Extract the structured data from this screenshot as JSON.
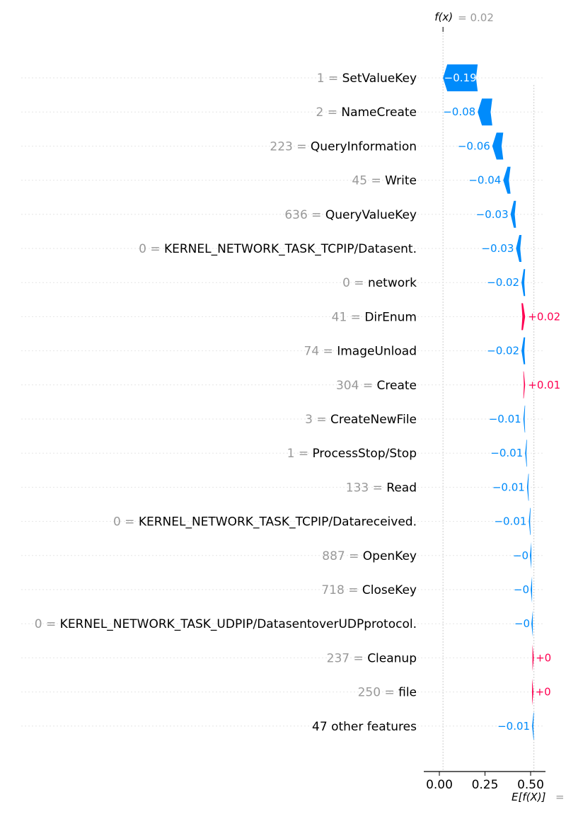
{
  "chart_data": {
    "type": "waterfall",
    "title": "",
    "fx_label": "f(x)",
    "fx_eq": "= 0.02",
    "ex_label": "E[f(X)]",
    "ex_eq": "=",
    "features": [
      {
        "value": "1",
        "name": "SetValueKey",
        "contribution": -0.19,
        "label": "−0.19"
      },
      {
        "value": "2",
        "name": "NameCreate",
        "contribution": -0.08,
        "label": "−0.08"
      },
      {
        "value": "223",
        "name": "QueryInformation",
        "contribution": -0.06,
        "label": "−0.06"
      },
      {
        "value": "45",
        "name": "Write",
        "contribution": -0.04,
        "label": "−0.04"
      },
      {
        "value": "636",
        "name": "QueryValueKey",
        "contribution": -0.03,
        "label": "−0.03"
      },
      {
        "value": "0",
        "name": "KERNEL_NETWORK_TASK_TCPIP/Datasent.",
        "contribution": -0.03,
        "label": "−0.03"
      },
      {
        "value": "0",
        "name": "network",
        "contribution": -0.02,
        "label": "−0.02"
      },
      {
        "value": "41",
        "name": "DirEnum",
        "contribution": 0.02,
        "label": "+0.02"
      },
      {
        "value": "74",
        "name": "ImageUnload",
        "contribution": -0.02,
        "label": "−0.02"
      },
      {
        "value": "304",
        "name": "Create",
        "contribution": 0.01,
        "label": "+0.01"
      },
      {
        "value": "3",
        "name": "CreateNewFile",
        "contribution": -0.01,
        "label": "−0.01"
      },
      {
        "value": "1",
        "name": "ProcessStop/Stop",
        "contribution": -0.01,
        "label": "−0.01"
      },
      {
        "value": "133",
        "name": "Read",
        "contribution": -0.01,
        "label": "−0.01"
      },
      {
        "value": "0",
        "name": "KERNEL_NETWORK_TASK_TCPIP/Datareceived.",
        "contribution": -0.01,
        "label": "−0.01"
      },
      {
        "value": "887",
        "name": "OpenKey",
        "contribution": -0.004,
        "label": "−0"
      },
      {
        "value": "718",
        "name": "CloseKey",
        "contribution": -0.004,
        "label": "−0"
      },
      {
        "value": "0",
        "name": "KERNEL_NETWORK_TASK_UDPIP/DatasentoverUDPprotocol.",
        "contribution": -0.004,
        "label": "−0"
      },
      {
        "value": "237",
        "name": "Cleanup",
        "contribution": 0.002,
        "label": "+0"
      },
      {
        "value": "250",
        "name": "file",
        "contribution": 0.002,
        "label": "+0"
      },
      {
        "value": "",
        "name": "47 other features",
        "contribution": -0.01,
        "label": "−0.01"
      }
    ],
    "x_ticks": [
      "0.00",
      "0.25",
      "0.50"
    ],
    "xlim": [
      -0.08,
      0.57
    ],
    "colors": {
      "negative": "#008bfb",
      "positive": "#ff0051",
      "value_text": "#999999",
      "label_text": "#000000"
    }
  }
}
